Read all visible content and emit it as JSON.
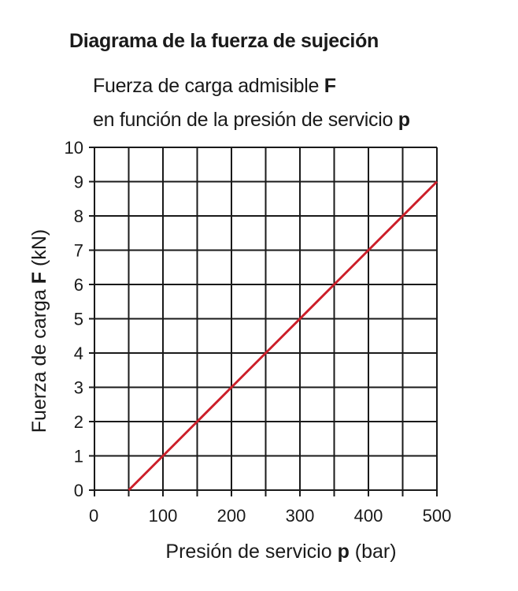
{
  "header": {
    "title": "Diagrama de la fuerza de sujeción",
    "subtitle_line1_text": "Fuerza de carga admisible ",
    "subtitle_line1_bold": "F",
    "subtitle_line2_text": "en función de la presión de servicio ",
    "subtitle_line2_bold": "p"
  },
  "colors": {
    "line": "#cc1f2a",
    "grid": "#1a1a1a",
    "text": "#1a1a1a"
  },
  "chart_data": {
    "type": "line",
    "title": "Diagrama de la fuerza de sujeción",
    "subtitle": "Fuerza de carga admisible F en función de la presión de servicio p",
    "xlabel": "Presión de servicio p (bar)",
    "xlabel_parts": [
      "Presión de servicio ",
      "p",
      " (bar)"
    ],
    "ylabel": "Fuerza de carga F (kN)",
    "ylabel_parts": [
      "Fuerza de carga ",
      "F",
      " (kN)"
    ],
    "xlim": [
      0,
      500
    ],
    "ylim": [
      0,
      10
    ],
    "xticks": [
      0,
      100,
      200,
      300,
      400,
      500
    ],
    "yticks": [
      0,
      1,
      2,
      3,
      4,
      5,
      6,
      7,
      8,
      9,
      10
    ],
    "x_grid": [
      0,
      50,
      100,
      150,
      200,
      250,
      300,
      350,
      400,
      450,
      500
    ],
    "y_grid": [
      0,
      1,
      2,
      3,
      4,
      5,
      6,
      7,
      8,
      9,
      10
    ],
    "grid": true,
    "series": [
      {
        "x": [
          50,
          100,
          150,
          200,
          250,
          300,
          350,
          400,
          450,
          500
        ],
        "y": [
          0,
          1,
          2,
          3,
          4,
          5,
          6,
          7,
          8,
          9
        ]
      }
    ]
  }
}
